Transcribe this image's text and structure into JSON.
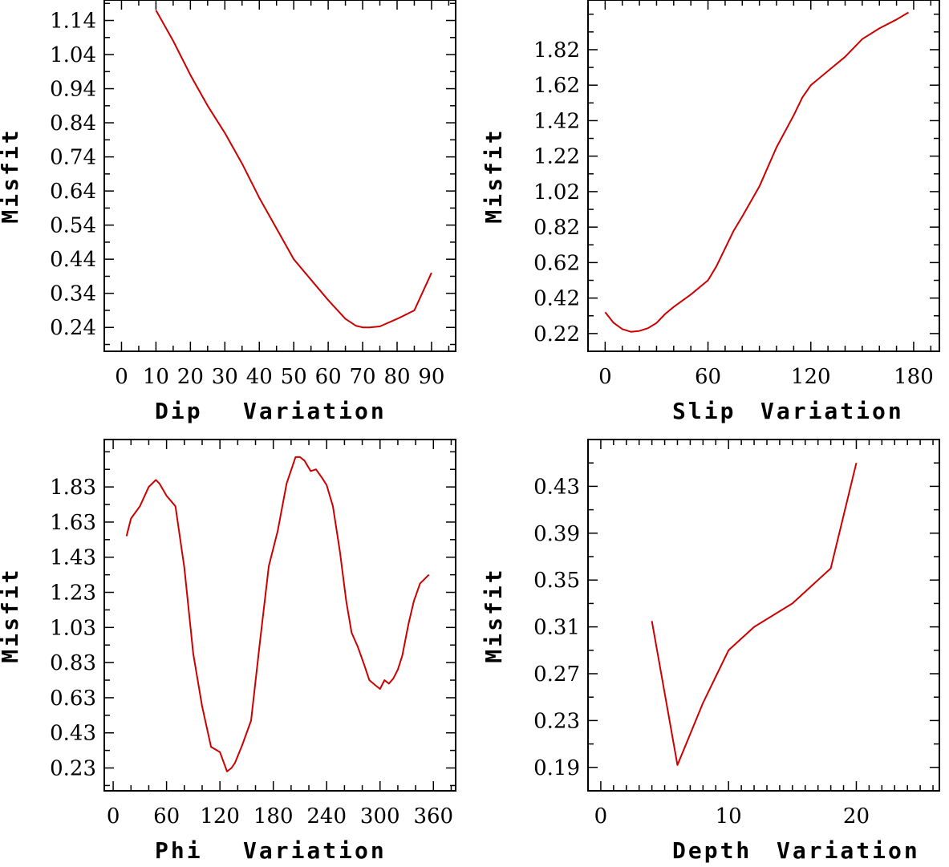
{
  "colors": {
    "line": "#cc0000",
    "axis": "#000000",
    "background": "#ffffff"
  },
  "chart_data": [
    {
      "id": "dip",
      "type": "line",
      "title": "",
      "xlabel_parts": [
        "Dip",
        "Variation"
      ],
      "ylabel": "Misfit",
      "xlim": [
        -5,
        97
      ],
      "ylim": [
        0.17,
        1.2
      ],
      "xticks": [
        0,
        10,
        20,
        30,
        40,
        50,
        60,
        70,
        80,
        90
      ],
      "xtick_labels": [
        "0",
        "10",
        "20",
        "30",
        "40",
        "50",
        "60",
        "70",
        "80",
        "90"
      ],
      "yticks": [
        0.24,
        0.34,
        0.44,
        0.54,
        0.64,
        0.74,
        0.84,
        0.94,
        1.04,
        1.14
      ],
      "ytick_labels": [
        "0.24",
        "0.34",
        "0.44",
        "0.54",
        "0.64",
        "0.74",
        "0.84",
        "0.94",
        "1.04",
        "1.14"
      ],
      "minor_y_step": 0.05,
      "minor_x_step": 5,
      "x": [
        10,
        15,
        20,
        25,
        30,
        35,
        40,
        45,
        50,
        55,
        60,
        65,
        68,
        70,
        72,
        75,
        80,
        85,
        90
      ],
      "y": [
        1.17,
        1.08,
        0.98,
        0.89,
        0.81,
        0.72,
        0.62,
        0.53,
        0.44,
        0.38,
        0.32,
        0.265,
        0.245,
        0.24,
        0.24,
        0.243,
        0.265,
        0.29,
        0.4
      ]
    },
    {
      "id": "slip",
      "type": "line",
      "title": "",
      "xlabel_parts": [
        "Slip",
        "Variation"
      ],
      "ylabel": "Misfit",
      "xlim": [
        -10,
        195
      ],
      "ylim": [
        0.12,
        2.1
      ],
      "xticks": [
        0,
        60,
        120,
        180
      ],
      "xtick_labels": [
        "0",
        "60",
        "120",
        "180"
      ],
      "yticks": [
        0.22,
        0.42,
        0.62,
        0.82,
        1.02,
        1.22,
        1.42,
        1.62,
        1.82
      ],
      "ytick_labels": [
        "0.22",
        "0.42",
        "0.62",
        "0.82",
        "1.02",
        "1.22",
        "1.42",
        "1.62",
        "1.82"
      ],
      "minor_y_step": 0.1,
      "minor_x_step": 10,
      "x": [
        0,
        5,
        10,
        15,
        20,
        25,
        30,
        35,
        40,
        50,
        60,
        65,
        70,
        75,
        80,
        90,
        100,
        110,
        115,
        120,
        130,
        140,
        150,
        160,
        170,
        177
      ],
      "y": [
        0.34,
        0.28,
        0.245,
        0.23,
        0.235,
        0.25,
        0.28,
        0.33,
        0.37,
        0.44,
        0.52,
        0.6,
        0.7,
        0.8,
        0.88,
        1.05,
        1.27,
        1.45,
        1.55,
        1.62,
        1.7,
        1.78,
        1.88,
        1.94,
        1.99,
        2.03
      ]
    },
    {
      "id": "phi",
      "type": "line",
      "title": "",
      "xlabel_parts": [
        "Phi",
        "Variation"
      ],
      "ylabel": "Misfit",
      "xlim": [
        -10,
        385
      ],
      "ylim": [
        0.1,
        2.1
      ],
      "xticks": [
        0,
        60,
        120,
        180,
        240,
        300,
        360
      ],
      "xtick_labels": [
        "0",
        "60",
        "120",
        "180",
        "240",
        "300",
        "360"
      ],
      "yticks": [
        0.23,
        0.43,
        0.63,
        0.83,
        1.03,
        1.23,
        1.43,
        1.63,
        1.83
      ],
      "ytick_labels": [
        "0.23",
        "0.43",
        "0.63",
        "0.83",
        "1.03",
        "1.23",
        "1.43",
        "1.63",
        "1.83"
      ],
      "minor_y_step": 0.1,
      "minor_x_step": 20,
      "x": [
        15,
        20,
        30,
        40,
        48,
        52,
        60,
        70,
        80,
        90,
        100,
        110,
        120,
        128,
        133,
        137,
        145,
        155,
        165,
        175,
        185,
        195,
        205,
        210,
        215,
        222,
        228,
        235,
        240,
        247,
        255,
        262,
        268,
        275,
        282,
        288,
        295,
        300,
        305,
        310,
        315,
        320,
        325,
        332,
        338,
        345,
        355
      ],
      "y": [
        1.55,
        1.65,
        1.72,
        1.83,
        1.87,
        1.85,
        1.78,
        1.72,
        1.37,
        0.88,
        0.58,
        0.35,
        0.32,
        0.21,
        0.23,
        0.26,
        0.36,
        0.5,
        0.95,
        1.38,
        1.58,
        1.85,
        2.0,
        2.0,
        1.98,
        1.92,
        1.93,
        1.88,
        1.84,
        1.72,
        1.46,
        1.18,
        1.0,
        0.92,
        0.82,
        0.73,
        0.7,
        0.68,
        0.73,
        0.71,
        0.74,
        0.79,
        0.87,
        1.05,
        1.18,
        1.28,
        1.33
      ]
    },
    {
      "id": "depth",
      "type": "line",
      "title": "",
      "xlabel_parts": [
        "Depth",
        "Variation"
      ],
      "ylabel": "Misfit",
      "xlim": [
        -1,
        26.5
      ],
      "ylim": [
        0.17,
        0.47
      ],
      "xticks": [
        0,
        10,
        20
      ],
      "xtick_labels": [
        "0",
        "10",
        "20"
      ],
      "yticks": [
        0.19,
        0.23,
        0.27,
        0.31,
        0.35,
        0.39,
        0.43
      ],
      "ytick_labels": [
        "0.19",
        "0.23",
        "0.27",
        "0.31",
        "0.35",
        "0.39",
        "0.43"
      ],
      "minor_y_step": 0.02,
      "minor_x_step": 1,
      "x": [
        4,
        6,
        8,
        10,
        12,
        15,
        18,
        20
      ],
      "y": [
        0.315,
        0.192,
        0.245,
        0.29,
        0.31,
        0.33,
        0.36,
        0.45
      ]
    }
  ]
}
